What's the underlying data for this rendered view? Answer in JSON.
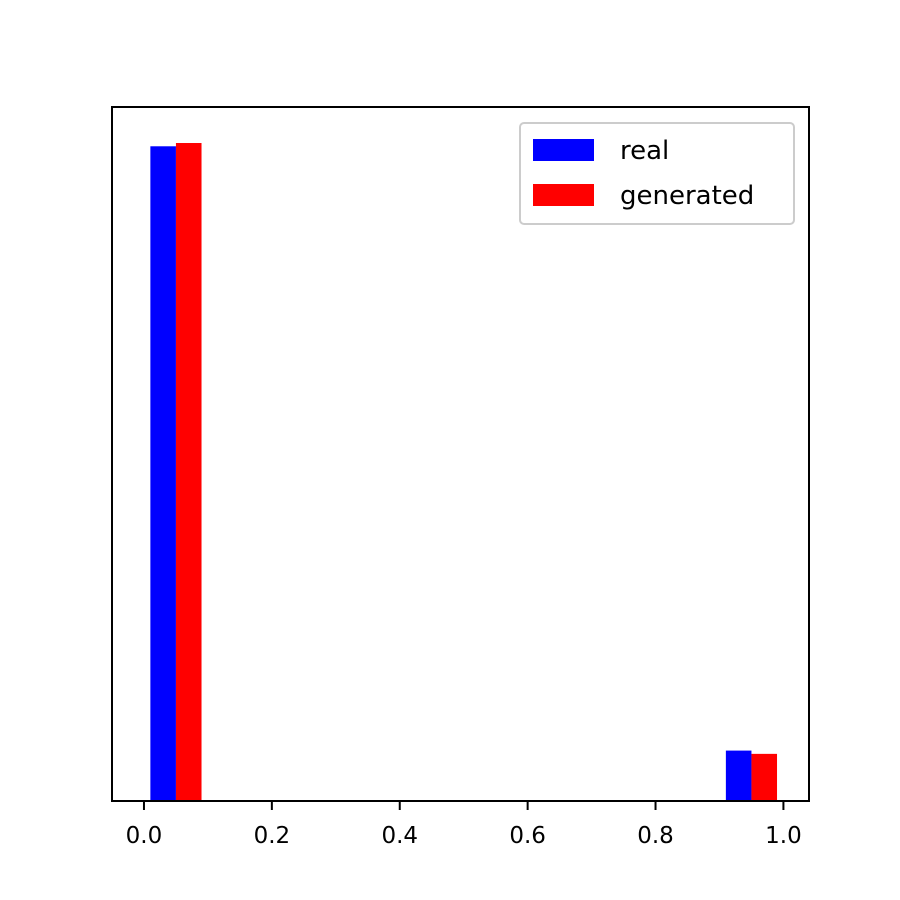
{
  "chart_data": {
    "type": "bar",
    "title": "",
    "xlabel": "",
    "ylabel": "",
    "xlim": [
      -0.05,
      1.04
    ],
    "ylim": [
      0,
      1.06
    ],
    "y_ticks_shown": false,
    "grid": false,
    "legend_position": "top-right",
    "x_ticks": [
      {
        "value": 0.0,
        "label": "0.0"
      },
      {
        "value": 0.2,
        "label": "0.2"
      },
      {
        "value": 0.4,
        "label": "0.4"
      },
      {
        "value": 0.6,
        "label": "0.6"
      },
      {
        "value": 0.8,
        "label": "0.8"
      },
      {
        "value": 1.0,
        "label": "1.0"
      }
    ],
    "bins": [
      {
        "start": 0.0,
        "end": 0.1
      },
      {
        "start": 0.9,
        "end": 1.0
      }
    ],
    "series": [
      {
        "name": "real",
        "color": "#0000ff",
        "values": [
          1.0,
          0.077
        ]
      },
      {
        "name": "generated",
        "color": "#ff0000",
        "values": [
          1.005,
          0.072
        ]
      }
    ]
  }
}
